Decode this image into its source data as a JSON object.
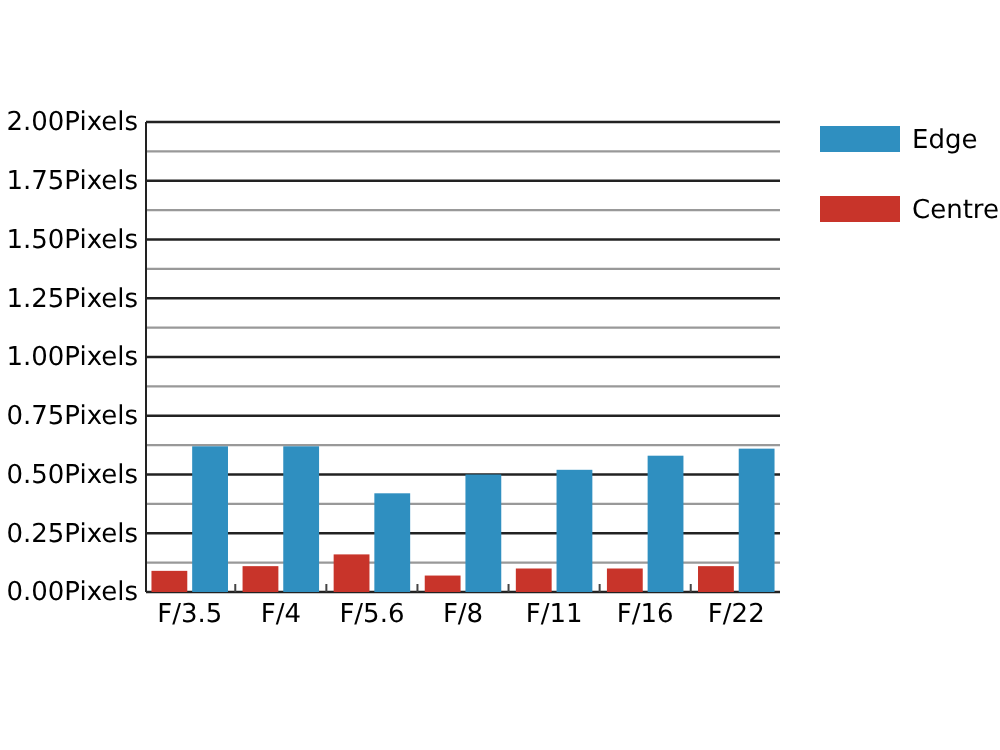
{
  "chart_data": {
    "type": "bar",
    "categories": [
      "F/3.5",
      "F/4",
      "F/5.6",
      "F/8",
      "F/11",
      "F/16",
      "F/22"
    ],
    "series": [
      {
        "name": "Centre",
        "color": "#c8342a",
        "values": [
          0.09,
          0.11,
          0.16,
          0.07,
          0.1,
          0.1,
          0.11
        ]
      },
      {
        "name": "Edge",
        "color": "#2f8fc0",
        "values": [
          0.62,
          0.62,
          0.42,
          0.5,
          0.52,
          0.58,
          0.61
        ]
      }
    ],
    "ylim": [
      0,
      2
    ],
    "yticks": [
      {
        "value": 0,
        "label": "0.00Pixels"
      },
      {
        "value": 0.125,
        "label": null
      },
      {
        "value": 0.25,
        "label": "0.25Pixels"
      },
      {
        "value": 0.375,
        "label": null
      },
      {
        "value": 0.5,
        "label": "0.50Pixels"
      },
      {
        "value": 0.625,
        "label": null
      },
      {
        "value": 0.75,
        "label": "0.75Pixels"
      },
      {
        "value": 0.875,
        "label": null
      },
      {
        "value": 1,
        "label": "1.00Pixels"
      },
      {
        "value": 1.125,
        "label": null
      },
      {
        "value": 1.25,
        "label": "1.25Pixels"
      },
      {
        "value": 1.375,
        "label": null
      },
      {
        "value": 1.5,
        "label": "1.50Pixels"
      },
      {
        "value": 1.625,
        "label": null
      },
      {
        "value": 1.75,
        "label": "1.75Pixels"
      },
      {
        "value": 1.875,
        "label": null
      },
      {
        "value": 2,
        "label": "2.00Pixels"
      }
    ],
    "grid": "y",
    "legend": "right"
  }
}
